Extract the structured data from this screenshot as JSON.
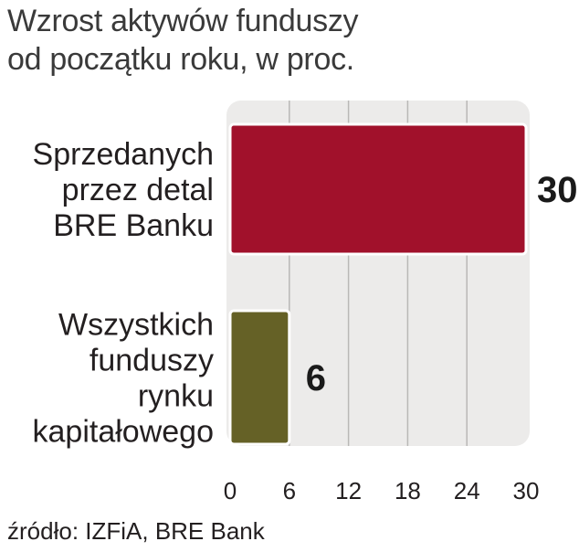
{
  "title_lines": [
    "Wzrost aktywów funduszy",
    "od początku roku, w proc."
  ],
  "source": "źródło: IZFiA, BRE Bank",
  "colors": {
    "panel": "#ecebea",
    "grid": "#b9b8b6",
    "bar_1": "#a1112b",
    "bar_2": "#656126",
    "bar_stroke": "#ffffff"
  },
  "chart_data": {
    "type": "bar",
    "orientation": "horizontal",
    "categories": [
      [
        "Sprzedanych",
        "przez detal",
        "BRE Banku"
      ],
      [
        "Wszystkich",
        "funduszy",
        "rynku",
        "kapitałowego"
      ]
    ],
    "values": [
      30,
      6
    ],
    "value_labels": [
      "30",
      "6"
    ],
    "xlim": [
      0,
      30
    ],
    "xticks": [
      0,
      6,
      12,
      18,
      24,
      30
    ],
    "xtick_labels": [
      "0",
      "6",
      "12",
      "18",
      "24",
      "30"
    ],
    "grid": true
  }
}
